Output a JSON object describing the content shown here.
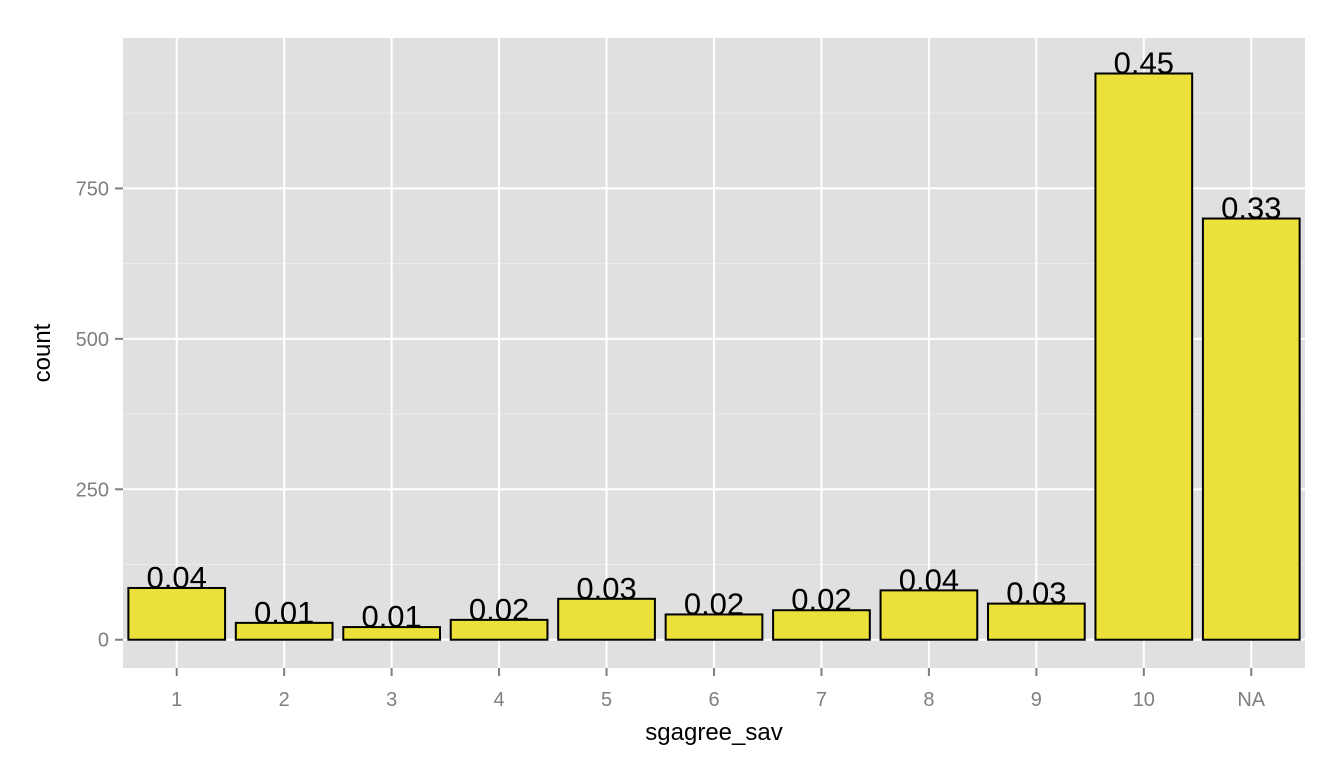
{
  "chart_data": {
    "type": "bar",
    "title": "",
    "xlabel": "sgagree_sav",
    "ylabel": "count",
    "categories": [
      "1",
      "2",
      "3",
      "4",
      "5",
      "6",
      "7",
      "8",
      "9",
      "10",
      "NA"
    ],
    "values": [
      86,
      28,
      21,
      33,
      68,
      42,
      49,
      82,
      60,
      941,
      700
    ],
    "bar_labels": [
      "0.04",
      "0.01",
      "0.01",
      "0.02",
      "0.03",
      "0.02",
      "0.02",
      "0.04",
      "0.03",
      "0.45",
      "0.33"
    ],
    "y_ticks": [
      0,
      250,
      500,
      750
    ],
    "y_tick_labels": [
      "0",
      "250",
      "500",
      "750"
    ],
    "ylim": [
      -47,
      1000
    ],
    "grid": true,
    "legend": "none",
    "colors": {
      "bar_fill": "#ebe13a",
      "bar_stroke": "#000000",
      "panel_background": "#e0e0e0",
      "grid_major": "#ffffff",
      "grid_minor": "#ededed",
      "tick_text": "#7f7f7f",
      "axis_title": "#000000"
    }
  }
}
